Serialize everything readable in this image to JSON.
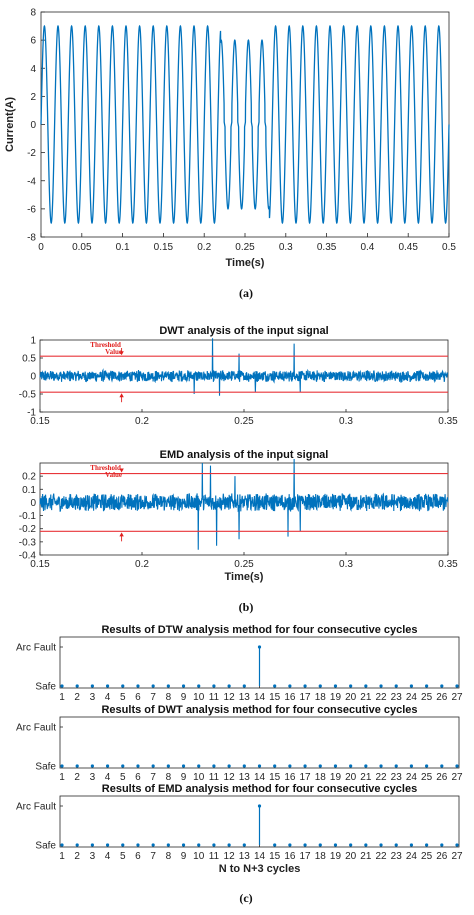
{
  "colors": {
    "signal": "#0072bd",
    "threshold": "#e8353a",
    "annotation": "#e0201f",
    "axis": "#262626"
  },
  "captions": {
    "a": "(a)",
    "b": "(b)",
    "c": "(c)"
  },
  "chart_data": [
    {
      "id": "a",
      "type": "line",
      "title": "",
      "xlabel": "Time(s)",
      "ylabel": "Current(A)",
      "xlim": [
        0,
        0.5
      ],
      "ylim": [
        -8,
        8
      ],
      "xticks": [
        "0",
        "0.05",
        "0.1",
        "0.15",
        "0.2",
        "0.25",
        "0.3",
        "0.35",
        "0.4",
        "0.45",
        "0.5"
      ],
      "yticks": [
        "-8",
        "-6",
        "-4",
        "-2",
        "0",
        "2",
        "4",
        "6",
        "8"
      ],
      "signal": {
        "frequency_hz": 60,
        "amplitude_a": 7,
        "arc_fault_interval_s": [
          0.22,
          0.28
        ],
        "arc_fault_peak_a": 6
      }
    },
    {
      "id": "b1",
      "type": "line",
      "title": "DWT analysis of the input signal",
      "xlabel": "",
      "ylabel": "",
      "xlim": [
        0.15,
        0.35
      ],
      "ylim": [
        -1,
        1
      ],
      "xticks": [
        "0.15",
        "0.2",
        "0.25",
        "0.3",
        "0.35"
      ],
      "yticks": [
        "-1",
        "-0.5",
        "0",
        "0.5",
        "1"
      ],
      "ytick_values": [
        -1,
        -0.5,
        0,
        0.5,
        1
      ],
      "thresholds": [
        0.55,
        -0.45
      ],
      "annotation": {
        "text_line1": "Threshold",
        "text_line2": "Value",
        "x": 0.19
      },
      "noise_level": 0.17,
      "spikes": [
        {
          "x": 0.2255,
          "y": -0.5
        },
        {
          "x": 0.2345,
          "y": 1.05
        },
        {
          "x": 0.238,
          "y": -0.55
        },
        {
          "x": 0.2475,
          "y": 0.62
        },
        {
          "x": 0.2555,
          "y": -0.45
        },
        {
          "x": 0.2745,
          "y": 0.9
        },
        {
          "x": 0.2775,
          "y": -0.45
        }
      ]
    },
    {
      "id": "b2",
      "type": "line",
      "title": "EMD analysis of the input signal",
      "xlabel": "Time(s)",
      "ylabel": "",
      "xlim": [
        0.15,
        0.35
      ],
      "ylim": [
        -0.4,
        0.3
      ],
      "xticks": [
        "0.15",
        "0.2",
        "0.25",
        "0.3",
        "0.35"
      ],
      "yticks": [
        "-0.4",
        "-0.3",
        "-0.2",
        "-0.1",
        "0",
        "0.1",
        "0.2"
      ],
      "ytick_values": [
        -0.4,
        -0.3,
        -0.2,
        -0.1,
        0,
        0.1,
        0.2
      ],
      "thresholds": [
        0.22,
        -0.22
      ],
      "annotation": {
        "text_line1": "Threshold",
        "text_line2": "Value",
        "x": 0.19
      },
      "noise_level": 0.07,
      "spikes": [
        {
          "x": 0.2275,
          "y": -0.36
        },
        {
          "x": 0.2295,
          "y": 0.3
        },
        {
          "x": 0.2335,
          "y": 0.28
        },
        {
          "x": 0.2365,
          "y": -0.33
        },
        {
          "x": 0.2455,
          "y": 0.2
        },
        {
          "x": 0.2475,
          "y": -0.28
        },
        {
          "x": 0.2715,
          "y": -0.26
        },
        {
          "x": 0.2745,
          "y": 0.33
        },
        {
          "x": 0.2775,
          "y": -0.22
        }
      ]
    },
    {
      "id": "c1",
      "type": "stem",
      "title": "Results of DTW analysis method for four consecutive cycles",
      "xlabel": "",
      "yticks": [
        "Safe",
        "Arc Fault"
      ],
      "xticks": [
        "1",
        "2",
        "3",
        "4",
        "5",
        "6",
        "7",
        "8",
        "9",
        "10",
        "11",
        "12",
        "13",
        "14",
        "15",
        "16",
        "17",
        "18",
        "19",
        "20",
        "21",
        "22",
        "23",
        "24",
        "25",
        "26",
        "27"
      ],
      "values": [
        0,
        0,
        0,
        0,
        0,
        0,
        0,
        0,
        0,
        0,
        0,
        0,
        0,
        1,
        0,
        0,
        0,
        0,
        0,
        0,
        0,
        0,
        0,
        0,
        0,
        0,
        0
      ]
    },
    {
      "id": "c2",
      "type": "stem",
      "title": "Results of DWT analysis method for four consecutive cycles",
      "xlabel": "",
      "yticks": [
        "Safe",
        "Arc Fault"
      ],
      "xticks": [
        "1",
        "2",
        "3",
        "4",
        "5",
        "6",
        "7",
        "8",
        "9",
        "10",
        "11",
        "12",
        "13",
        "14",
        "15",
        "16",
        "17",
        "18",
        "19",
        "20",
        "21",
        "22",
        "23",
        "24",
        "25",
        "26",
        "27"
      ],
      "values": [
        0,
        0,
        0,
        0,
        0,
        0,
        0,
        0,
        0,
        0,
        0,
        0,
        0,
        0,
        0,
        0,
        0,
        0,
        0,
        0,
        0,
        0,
        0,
        0,
        0,
        0,
        0
      ]
    },
    {
      "id": "c3",
      "type": "stem",
      "title": "Results of EMD analysis method for four consecutive cycles",
      "xlabel": "N to N+3 cycles",
      "yticks": [
        "Safe",
        "Arc Fault"
      ],
      "xticks": [
        "1",
        "2",
        "3",
        "4",
        "5",
        "6",
        "7",
        "8",
        "9",
        "10",
        "11",
        "12",
        "13",
        "14",
        "15",
        "16",
        "17",
        "18",
        "19",
        "20",
        "21",
        "22",
        "23",
        "24",
        "25",
        "26",
        "27"
      ],
      "values": [
        0,
        0,
        0,
        0,
        0,
        0,
        0,
        0,
        0,
        0,
        0,
        0,
        0,
        1,
        0,
        0,
        0,
        0,
        0,
        0,
        0,
        0,
        0,
        0,
        0,
        0,
        0
      ]
    }
  ]
}
